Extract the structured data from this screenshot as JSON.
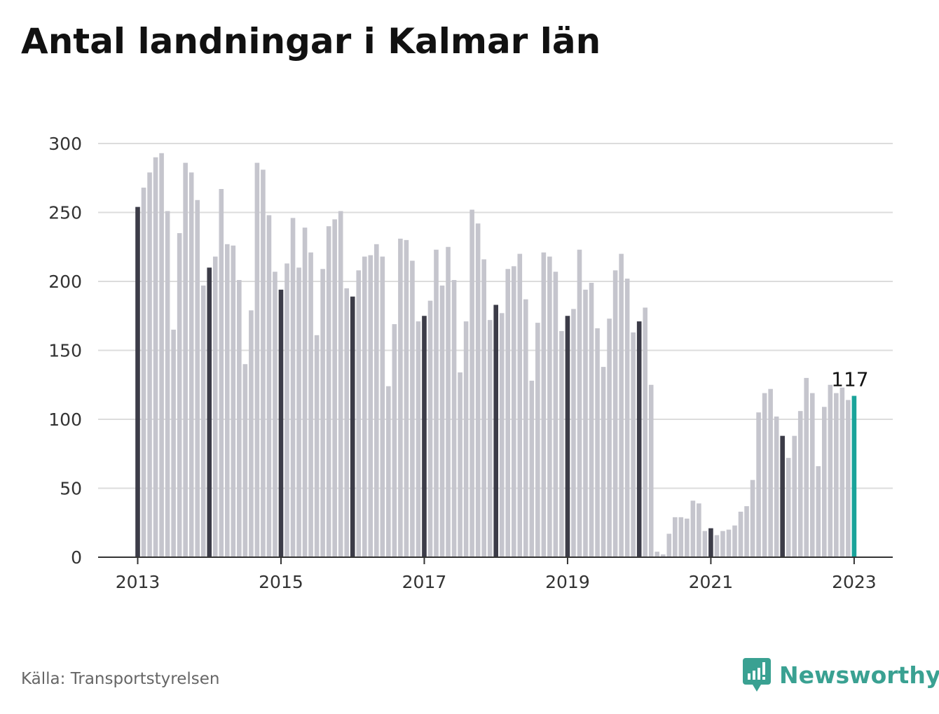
{
  "title": "Antal landningar i Kalmar län",
  "source": "Källa: Transportstyrelsen",
  "brand": "Newsworthy",
  "colors": {
    "bar": "#c5c5cd",
    "bar_january": "#3c3c48",
    "bar_latest": "#1aa39a",
    "grid": "#dcdcdc",
    "axis": "#333333",
    "brand": "#3aa192"
  },
  "chart_data": {
    "type": "bar",
    "ylim": [
      0,
      300
    ],
    "yticks": [
      "0",
      "50",
      "100",
      "150",
      "200",
      "250",
      "300"
    ],
    "xticks": [
      "2013",
      "2015",
      "2017",
      "2019",
      "2021",
      "2023"
    ],
    "series": [
      {
        "values": [
          254,
          268,
          279,
          290,
          293,
          251,
          165,
          235,
          286,
          279,
          259,
          197,
          210,
          218,
          267,
          227,
          226,
          201,
          140,
          179,
          286,
          281,
          248,
          207,
          194,
          213,
          246,
          210,
          239,
          221,
          161,
          209,
          240,
          245,
          251,
          195,
          189,
          208,
          218,
          219,
          227,
          218,
          124,
          169,
          231,
          230,
          215,
          171,
          175,
          186,
          223,
          197,
          225,
          201,
          134,
          171,
          252,
          242,
          216,
          172,
          183,
          177,
          209,
          211,
          220,
          187,
          128,
          170,
          221,
          218,
          207,
          164,
          175,
          180,
          223,
          194,
          199,
          166,
          138,
          173,
          208,
          220,
          202,
          163,
          171,
          181,
          125,
          4,
          2,
          17,
          29,
          29,
          28,
          41,
          39,
          19,
          21,
          16,
          19,
          20,
          23,
          33,
          37,
          56,
          105,
          119,
          122,
          102,
          88,
          72,
          88,
          106,
          130,
          119,
          66,
          109,
          125,
          119,
          123,
          114,
          117
        ]
      }
    ],
    "annotation": "117"
  }
}
